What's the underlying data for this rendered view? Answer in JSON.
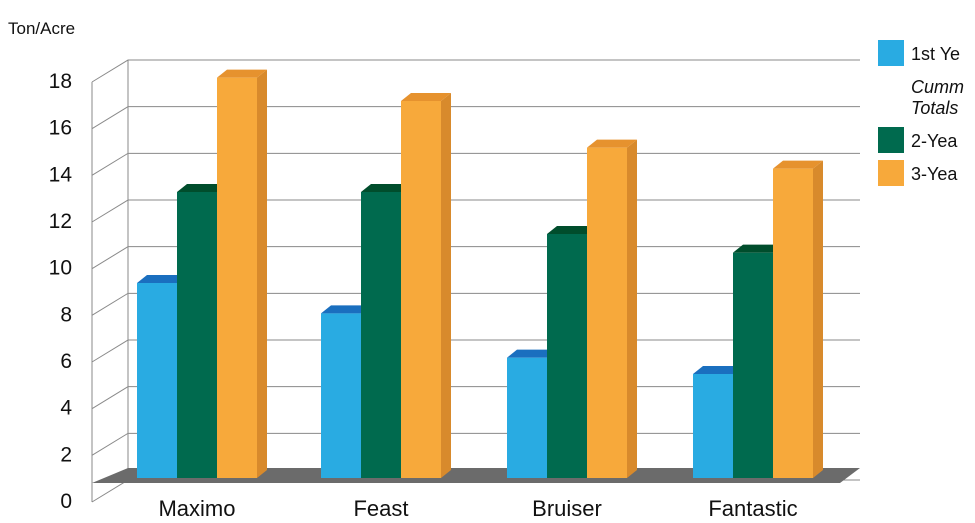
{
  "chart_data": {
    "type": "bar",
    "ylabel": "Ton/Acre",
    "ylim": [
      0,
      18
    ],
    "yticks": [
      0,
      2,
      4,
      6,
      8,
      10,
      12,
      14,
      16,
      18
    ],
    "grid": true,
    "legend_position": "right",
    "categories": [
      "Maximo",
      "Feast",
      "Bruiser",
      "Fantastic"
    ],
    "highlight_category": "Maximo",
    "highlight_color": "#1a7d4f",
    "series": [
      {
        "name": "1st Ye",
        "values": [
          8.7,
          7.4,
          5.5,
          4.8
        ],
        "color": "#29abe2",
        "top_color": "#1a6fbf",
        "side_color": "#1b87c2"
      },
      {
        "name": "2-Yea",
        "values": [
          12.6,
          12.6,
          10.8,
          10.0
        ],
        "color": "#006a4e",
        "top_color": "#004d2c",
        "side_color": "#004a36"
      },
      {
        "name": "3-Yea",
        "values": [
          17.5,
          16.5,
          14.5,
          13.6
        ],
        "color": "#f7a93b",
        "top_color": "#e6922e",
        "side_color": "#d88a2c"
      }
    ],
    "legend_note": [
      "Cumm",
      "Totals"
    ]
  }
}
